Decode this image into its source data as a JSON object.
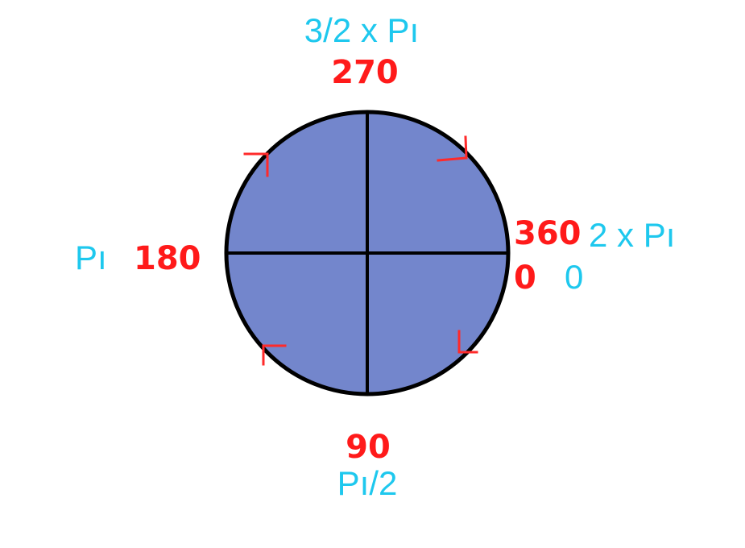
{
  "colors": {
    "circle_fill": "#7386cc",
    "circle_stroke": "#000000",
    "degree_text": "#ff1a1a",
    "radian_text": "#1ec8ee",
    "arrow_marks": "#ff2a2a"
  },
  "labels": {
    "top": {
      "degrees": "270",
      "radians": "3/2 x Pı"
    },
    "right": {
      "degrees_upper": "360",
      "radians_upper": "2 x Pı",
      "degrees_lower": "0",
      "radians_lower": "0"
    },
    "left": {
      "degrees": "180",
      "radians": "Pı"
    },
    "bottom": {
      "degrees": "90",
      "radians": "Pı/2"
    }
  },
  "arrow_direction": "clockwise"
}
